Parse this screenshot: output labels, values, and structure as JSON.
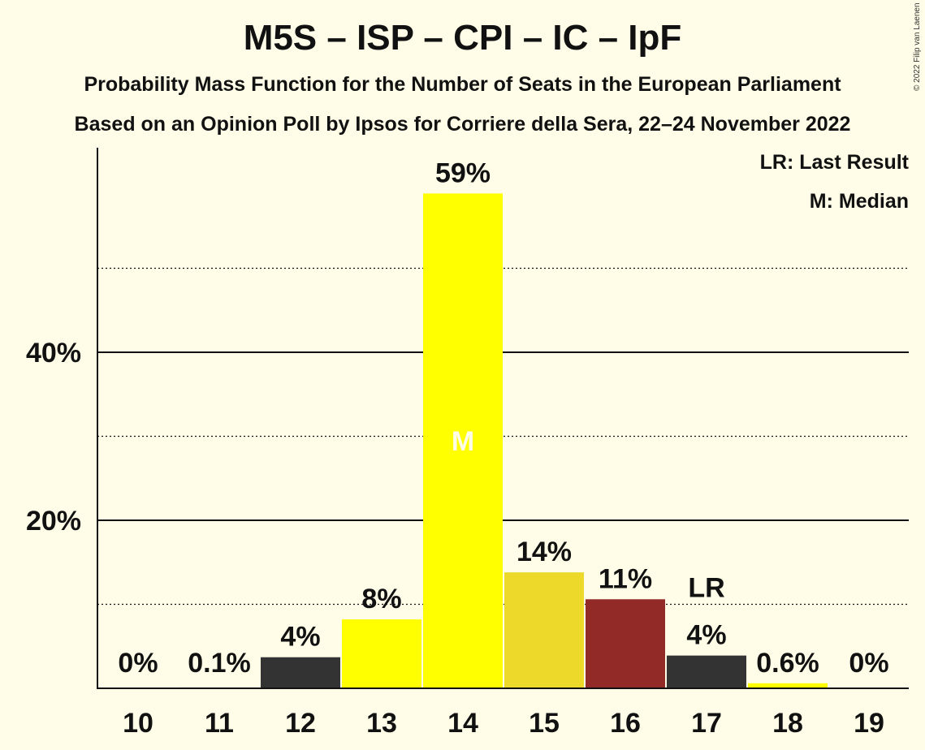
{
  "chart_data": {
    "type": "bar",
    "title": "M5S – ISP – CPI – IC – IpF",
    "subtitle": "Probability Mass Function for the Number of Seats in the European Parliament",
    "subtitle2": "Based on an Opinion Poll by Ipsos for Corriere della Sera, 22–24 November 2022",
    "legend": [
      "LR: Last Result",
      "M: Median"
    ],
    "legend_placement": "top-right",
    "copyright": "© 2022 Filip van Laenen",
    "categories": [
      "10",
      "11",
      "12",
      "13",
      "14",
      "15",
      "16",
      "17",
      "18",
      "19"
    ],
    "values": [
      0,
      0.1,
      3.7,
      8.2,
      58.9,
      13.8,
      10.6,
      3.9,
      0.6,
      0
    ],
    "labels": [
      "0%",
      "0.1%",
      "4%",
      "8%",
      "59%",
      "14%",
      "11%",
      "4%",
      "0.6%",
      "0%"
    ],
    "colors": [
      "#333333",
      "#333333",
      "#333333",
      "#FFFF00",
      "#FFFF00",
      "#ECD92A",
      "#922A28",
      "#333333",
      "#FFFF00",
      "#333333"
    ],
    "y_ticks": [
      {
        "value": 20,
        "label": "20%"
      },
      {
        "value": 40,
        "label": "40%"
      }
    ],
    "y_minor_ticks": [
      10,
      30,
      50
    ],
    "ylim": [
      0,
      64
    ],
    "last_result_index": 7,
    "last_result_label": "LR",
    "median_index": 4,
    "median_label": "M",
    "grid": true
  }
}
